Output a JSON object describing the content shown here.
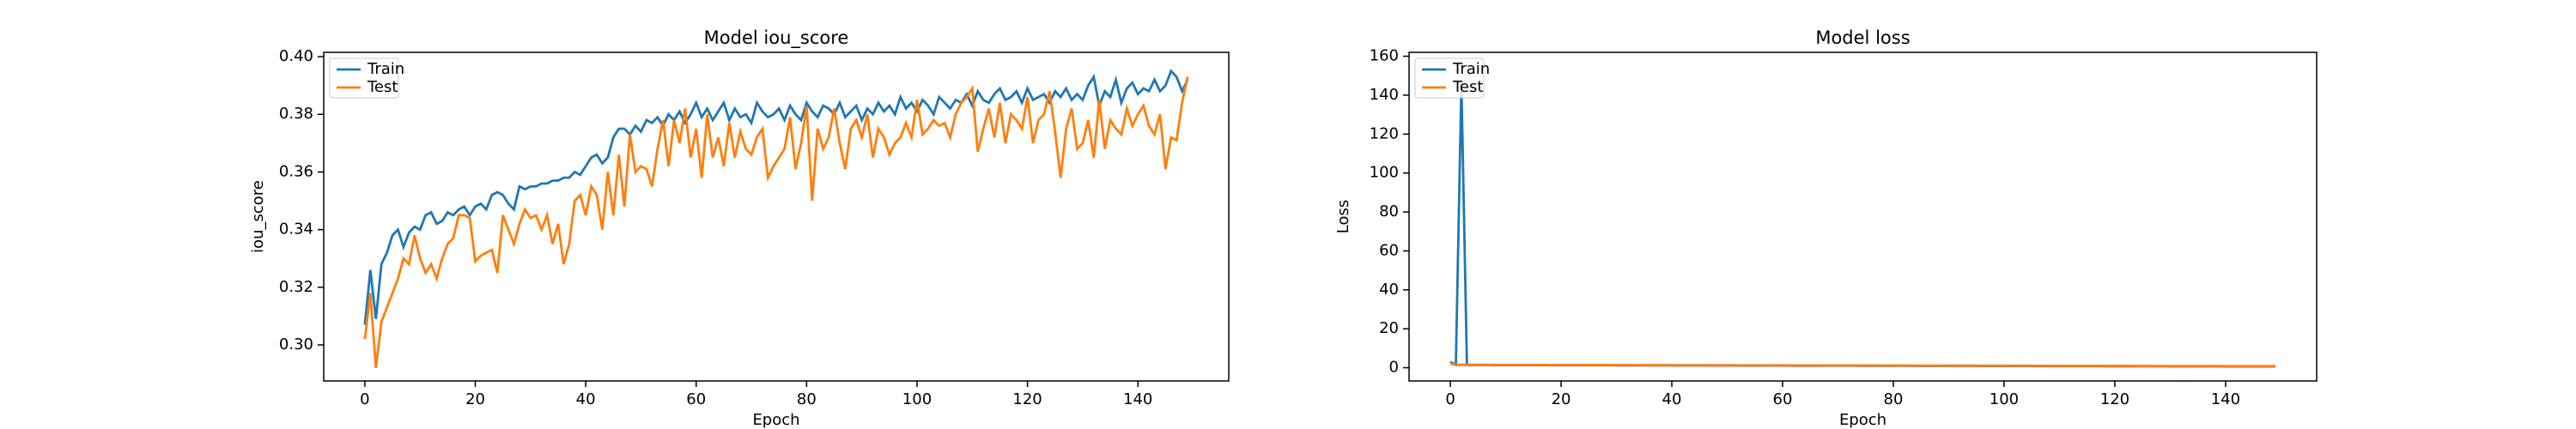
{
  "chart_data": [
    {
      "type": "line",
      "title": "Model iou_score",
      "xlabel": "Epoch",
      "ylabel": "iou_score",
      "x": [
        0,
        1,
        2,
        3,
        4,
        5,
        6,
        7,
        8,
        9,
        10,
        11,
        12,
        13,
        14,
        15,
        16,
        17,
        18,
        19,
        20,
        21,
        22,
        23,
        24,
        25,
        26,
        27,
        28,
        29,
        30,
        31,
        32,
        33,
        34,
        35,
        36,
        37,
        38,
        39,
        40,
        41,
        42,
        43,
        44,
        45,
        46,
        47,
        48,
        49,
        50,
        51,
        52,
        53,
        54,
        55,
        56,
        57,
        58,
        59,
        60,
        61,
        62,
        63,
        64,
        65,
        66,
        67,
        68,
        69,
        70,
        71,
        72,
        73,
        74,
        75,
        76,
        77,
        78,
        79,
        80,
        81,
        82,
        83,
        84,
        85,
        86,
        87,
        88,
        89,
        90,
        91,
        92,
        93,
        94,
        95,
        96,
        97,
        98,
        99,
        100,
        101,
        102,
        103,
        104,
        105,
        106,
        107,
        108,
        109,
        110,
        111,
        112,
        113,
        114,
        115,
        116,
        117,
        118,
        119,
        120,
        121,
        122,
        123,
        124,
        125,
        126,
        127,
        128,
        129,
        130,
        131,
        132,
        133,
        134,
        135,
        136,
        137,
        138,
        139,
        140,
        141,
        142,
        143,
        144,
        145,
        146,
        147,
        148,
        149
      ],
      "series": [
        {
          "name": "Train",
          "color": "#1f77b4",
          "values": [
            0.307,
            0.326,
            0.309,
            0.328,
            0.332,
            0.338,
            0.34,
            0.334,
            0.339,
            0.341,
            0.34,
            0.345,
            0.346,
            0.342,
            0.343,
            0.346,
            0.345,
            0.347,
            0.348,
            0.345,
            0.348,
            0.349,
            0.347,
            0.352,
            0.353,
            0.352,
            0.349,
            0.347,
            0.355,
            0.354,
            0.355,
            0.355,
            0.356,
            0.356,
            0.357,
            0.357,
            0.358,
            0.358,
            0.36,
            0.359,
            0.362,
            0.365,
            0.366,
            0.363,
            0.365,
            0.372,
            0.375,
            0.375,
            0.373,
            0.376,
            0.374,
            0.378,
            0.377,
            0.379,
            0.376,
            0.38,
            0.378,
            0.381,
            0.377,
            0.38,
            0.384,
            0.379,
            0.382,
            0.378,
            0.381,
            0.384,
            0.378,
            0.382,
            0.379,
            0.38,
            0.377,
            0.384,
            0.381,
            0.379,
            0.38,
            0.382,
            0.378,
            0.383,
            0.38,
            0.378,
            0.384,
            0.381,
            0.379,
            0.383,
            0.382,
            0.38,
            0.384,
            0.379,
            0.381,
            0.383,
            0.378,
            0.382,
            0.38,
            0.384,
            0.381,
            0.383,
            0.38,
            0.386,
            0.382,
            0.384,
            0.381,
            0.385,
            0.383,
            0.38,
            0.386,
            0.384,
            0.382,
            0.385,
            0.384,
            0.387,
            0.383,
            0.388,
            0.385,
            0.384,
            0.387,
            0.389,
            0.385,
            0.386,
            0.388,
            0.384,
            0.389,
            0.385,
            0.386,
            0.387,
            0.384,
            0.388,
            0.386,
            0.389,
            0.385,
            0.387,
            0.385,
            0.39,
            0.393,
            0.383,
            0.388,
            0.386,
            0.392,
            0.384,
            0.389,
            0.391,
            0.387,
            0.389,
            0.388,
            0.392,
            0.388,
            0.39,
            0.395,
            0.393,
            0.388,
            0.392
          ]
        },
        {
          "name": "Test",
          "color": "#ff7f0e",
          "values": [
            0.302,
            0.318,
            0.292,
            0.308,
            0.313,
            0.318,
            0.323,
            0.33,
            0.328,
            0.338,
            0.33,
            0.325,
            0.328,
            0.323,
            0.33,
            0.335,
            0.337,
            0.345,
            0.345,
            0.344,
            0.329,
            0.331,
            0.332,
            0.333,
            0.325,
            0.345,
            0.34,
            0.335,
            0.342,
            0.347,
            0.344,
            0.345,
            0.34,
            0.345,
            0.335,
            0.342,
            0.328,
            0.335,
            0.35,
            0.352,
            0.345,
            0.355,
            0.352,
            0.34,
            0.36,
            0.345,
            0.366,
            0.348,
            0.373,
            0.36,
            0.362,
            0.361,
            0.355,
            0.368,
            0.378,
            0.362,
            0.378,
            0.37,
            0.382,
            0.365,
            0.375,
            0.358,
            0.38,
            0.365,
            0.372,
            0.362,
            0.377,
            0.365,
            0.374,
            0.368,
            0.366,
            0.372,
            0.375,
            0.358,
            0.362,
            0.365,
            0.368,
            0.379,
            0.361,
            0.37,
            0.383,
            0.35,
            0.375,
            0.368,
            0.372,
            0.382,
            0.37,
            0.361,
            0.375,
            0.378,
            0.372,
            0.38,
            0.365,
            0.375,
            0.372,
            0.366,
            0.37,
            0.372,
            0.377,
            0.372,
            0.385,
            0.373,
            0.375,
            0.378,
            0.376,
            0.377,
            0.372,
            0.38,
            0.384,
            0.386,
            0.389,
            0.367,
            0.375,
            0.382,
            0.372,
            0.384,
            0.37,
            0.38,
            0.378,
            0.375,
            0.386,
            0.37,
            0.378,
            0.38,
            0.388,
            0.374,
            0.358,
            0.375,
            0.382,
            0.368,
            0.37,
            0.378,
            0.365,
            0.385,
            0.368,
            0.378,
            0.375,
            0.373,
            0.382,
            0.376,
            0.38,
            0.383,
            0.376,
            0.373,
            0.38,
            0.361,
            0.372,
            0.371,
            0.384,
            0.393
          ]
        }
      ],
      "xlim": [
        -7.45,
        156.45
      ],
      "xticks": [
        0,
        20,
        40,
        60,
        80,
        100,
        120,
        140
      ],
      "ylim": [
        0.2875,
        0.4015
      ],
      "yticks": [
        {
          "value": 0.3,
          "label": "0.30"
        },
        0.32,
        0.34,
        0.36,
        0.38,
        {
          "value": 0.4,
          "label": "0.40"
        }
      ],
      "legend": "upper left"
    },
    {
      "type": "line",
      "title": "Model loss",
      "xlabel": "Epoch",
      "ylabel": "Loss",
      "x": [
        0,
        1,
        2,
        3,
        4,
        5,
        6,
        7,
        8,
        9,
        10,
        11,
        12,
        13,
        14,
        15,
        16,
        17,
        18,
        19,
        20,
        21,
        22,
        23,
        24,
        25,
        26,
        27,
        28,
        29,
        30,
        31,
        32,
        33,
        34,
        35,
        36,
        37,
        38,
        39,
        40,
        41,
        42,
        43,
        44,
        45,
        46,
        47,
        48,
        49,
        50,
        51,
        52,
        53,
        54,
        55,
        56,
        57,
        58,
        59,
        60,
        61,
        62,
        63,
        64,
        65,
        66,
        67,
        68,
        69,
        70,
        71,
        72,
        73,
        74,
        75,
        76,
        77,
        78,
        79,
        80,
        81,
        82,
        83,
        84,
        85,
        86,
        87,
        88,
        89,
        90,
        91,
        92,
        93,
        94,
        95,
        96,
        97,
        98,
        99,
        100,
        101,
        102,
        103,
        104,
        105,
        106,
        107,
        108,
        109,
        110,
        111,
        112,
        113,
        114,
        115,
        116,
        117,
        118,
        119,
        120,
        121,
        122,
        123,
        124,
        125,
        126,
        127,
        128,
        129,
        130,
        131,
        132,
        133,
        134,
        135,
        136,
        137,
        138,
        139,
        140,
        141,
        142,
        143,
        144,
        145,
        146,
        147,
        148,
        149
      ],
      "series": [
        {
          "name": "Train",
          "color": "#1f77b4",
          "values": [
            3.0,
            1.5,
            146,
            1.4,
            1.35,
            1.35,
            1.34,
            1.34,
            1.33,
            1.33,
            1.32,
            1.32,
            1.31,
            1.31,
            1.3,
            1.3,
            1.29,
            1.29,
            1.28,
            1.28,
            1.27,
            1.27,
            1.26,
            1.26,
            1.25,
            1.25,
            1.24,
            1.24,
            1.23,
            1.23,
            1.22,
            1.22,
            1.21,
            1.21,
            1.2,
            1.2,
            1.19,
            1.19,
            1.18,
            1.18,
            1.17,
            1.17,
            1.16,
            1.16,
            1.15,
            1.15,
            1.14,
            1.14,
            1.13,
            1.13,
            1.12,
            1.12,
            1.11,
            1.11,
            1.1,
            1.1,
            1.09,
            1.09,
            1.08,
            1.08,
            1.07,
            1.07,
            1.06,
            1.06,
            1.05,
            1.05,
            1.04,
            1.04,
            1.03,
            1.03,
            1.02,
            1.02,
            1.01,
            1.01,
            1,
            1,
            0.99,
            0.99,
            0.98,
            0.98,
            0.97,
            0.97,
            0.96,
            0.96,
            0.95,
            0.95,
            0.94,
            0.94,
            0.93,
            0.93,
            0.92,
            0.92,
            0.91,
            0.91,
            0.9,
            0.9,
            0.89,
            0.89,
            0.88,
            0.88,
            0.87,
            0.87,
            0.86,
            0.86,
            0.85,
            0.85,
            0.84,
            0.84,
            0.83,
            0.83,
            0.82,
            0.82,
            0.81,
            0.81,
            0.8,
            0.8,
            0.79,
            0.79,
            0.78,
            0.78,
            0.77,
            0.77,
            0.76,
            0.76,
            0.75,
            0.75,
            0.74,
            0.74,
            0.73,
            0.73,
            0.72,
            0.72,
            0.71,
            0.71,
            0.7,
            0.7,
            0.69,
            0.69,
            0.68,
            0.68,
            0.67,
            0.67,
            0.66,
            0.66,
            0.65,
            0.65,
            0.64,
            0.64,
            0.63,
            0.63
          ]
        },
        {
          "name": "Test",
          "color": "#ff7f0e",
          "values": [
            2.1,
            1.6,
            1.5,
            1.5,
            1.49,
            1.49,
            1.48,
            1.48,
            1.47,
            1.47,
            1.46,
            1.46,
            1.45,
            1.45,
            1.44,
            1.44,
            1.43,
            1.43,
            1.42,
            1.42,
            1.41,
            1.41,
            1.4,
            1.4,
            1.39,
            1.39,
            1.38,
            1.38,
            1.37,
            1.37,
            1.36,
            1.36,
            1.35,
            1.35,
            1.34,
            1.34,
            1.33,
            1.33,
            1.32,
            1.32,
            1.31,
            1.31,
            1.3,
            1.3,
            1.29,
            1.29,
            1.28,
            1.28,
            1.27,
            1.27,
            1.26,
            1.26,
            1.25,
            1.25,
            1.24,
            1.24,
            1.23,
            1.23,
            1.22,
            1.22,
            1.21,
            1.21,
            1.2,
            1.2,
            1.19,
            1.19,
            1.18,
            1.18,
            1.17,
            1.17,
            1.16,
            1.16,
            1.15,
            1.15,
            1.14,
            1.14,
            1.13,
            1.13,
            1.12,
            1.12,
            1.11,
            1.11,
            1.1,
            1.1,
            1.09,
            1.09,
            1.08,
            1.08,
            1.07,
            1.07,
            1.06,
            1.06,
            1.05,
            1.05,
            1.04,
            1.04,
            1.03,
            1.03,
            1.02,
            1.02,
            1.01,
            1.01,
            1,
            1,
            0.99,
            0.99,
            0.98,
            0.98,
            0.97,
            0.97,
            0.96,
            0.96,
            0.95,
            0.95,
            0.94,
            0.94,
            0.93,
            0.93,
            0.92,
            0.92,
            0.91,
            0.91,
            0.9,
            0.9,
            0.89,
            0.89,
            0.88,
            0.88,
            0.87,
            0.87,
            0.86,
            0.86,
            0.85,
            0.85,
            0.84,
            0.84,
            0.83,
            0.83,
            0.82,
            0.82,
            0.81,
            0.81,
            0.8,
            0.8,
            0.79,
            0.79,
            0.78,
            0.78,
            0.77,
            0.77
          ]
        }
      ],
      "xlim": [
        -7.45,
        156.45
      ],
      "xticks": [
        0,
        20,
        40,
        60,
        80,
        100,
        120,
        140
      ],
      "ylim": [
        -6.8,
        162
      ],
      "yticks": [
        0,
        20,
        40,
        60,
        80,
        100,
        120,
        140,
        160
      ],
      "legend": "upper left"
    }
  ]
}
